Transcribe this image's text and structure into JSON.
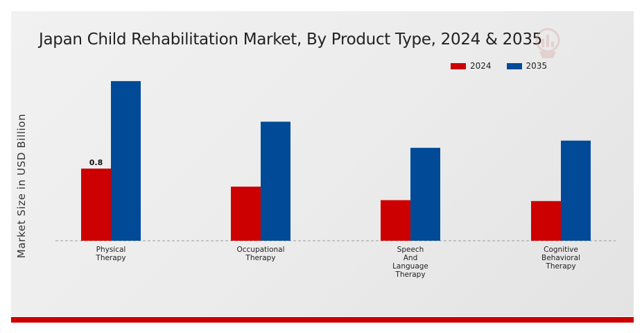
{
  "chart_data": {
    "type": "bar",
    "title": "Japan Child Rehabilitation Market, By Product Type, 2024 & 2035",
    "ylabel": "Market Size in USD Billion",
    "xlabel": "",
    "categories": [
      "Physical Therapy",
      "Occupational Therapy",
      "Speech And Language Therapy",
      "Cognitive Behavioral Therapy"
    ],
    "category_lines": [
      [
        "Physical",
        "Therapy"
      ],
      [
        "Occupational",
        "Therapy"
      ],
      [
        "Speech",
        "And",
        "Language",
        "Therapy"
      ],
      [
        "Cognitive",
        "Behavioral",
        "Therapy"
      ]
    ],
    "series": [
      {
        "name": "2024",
        "color": "#cc0000",
        "values": [
          0.8,
          0.6,
          0.45,
          0.44
        ]
      },
      {
        "name": "2035",
        "color": "#004a98",
        "values": [
          1.77,
          1.32,
          1.03,
          1.11
        ]
      }
    ],
    "data_labels": [
      {
        "series": 0,
        "index": 0,
        "text": "0.8"
      }
    ],
    "ylim": [
      0,
      2.0
    ],
    "grid": false,
    "legend_position": "top-right",
    "baseline_style": "dashed"
  }
}
